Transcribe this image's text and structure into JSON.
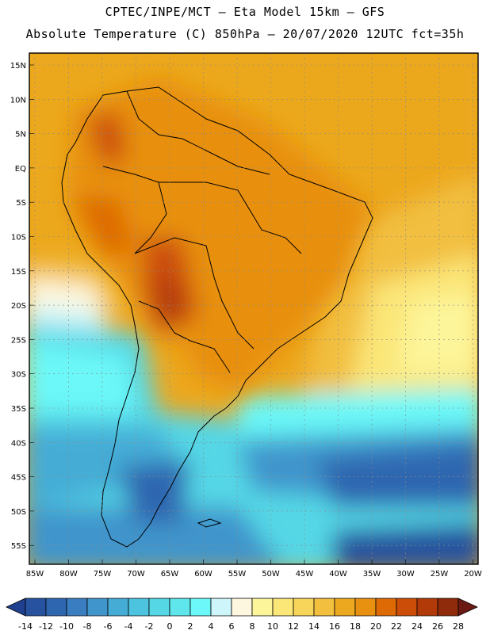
{
  "header": {
    "title_line1": "CPTEC/INPE/MCT –  Eta Model 15km – GFS",
    "title_line2": "Absolute Temperature (C) 850hPa – 20/07/2020 12UTC fct=35h"
  },
  "map": {
    "lat_labels": [
      "15N",
      "10N",
      "5N",
      "EQ",
      "5S",
      "10S",
      "15S",
      "20S",
      "25S",
      "30S",
      "35S",
      "40S",
      "45S",
      "50S",
      "55S"
    ],
    "lon_labels": [
      "85W",
      "80W",
      "75W",
      "70W",
      "65W",
      "60W",
      "55W",
      "50W",
      "45W",
      "40W",
      "35W",
      "30W",
      "25W",
      "20W"
    ]
  },
  "colorbar": {
    "tick_labels": [
      "-14",
      "-12",
      "-10",
      "-8",
      "-6",
      "-4",
      "-2",
      "0",
      "2",
      "4",
      "6",
      "8",
      "10",
      "12",
      "14",
      "16",
      "18",
      "20",
      "22",
      "24",
      "26",
      "28"
    ],
    "colors": [
      "#1f3f8f",
      "#26529f",
      "#2e66b0",
      "#3a7dc0",
      "#3f95cc",
      "#45acd6",
      "#4cc3df",
      "#55d7e6",
      "#5fe6ec",
      "#6cf8f8",
      "#cdf5fa",
      "#fdf7df",
      "#fdf59a",
      "#fbe678",
      "#f7d45a",
      "#f2bf3f",
      "#eca81f",
      "#e89010",
      "#de6a06",
      "#cc4d08",
      "#b23a08",
      "#8f2a0a",
      "#6a1a12"
    ]
  }
}
